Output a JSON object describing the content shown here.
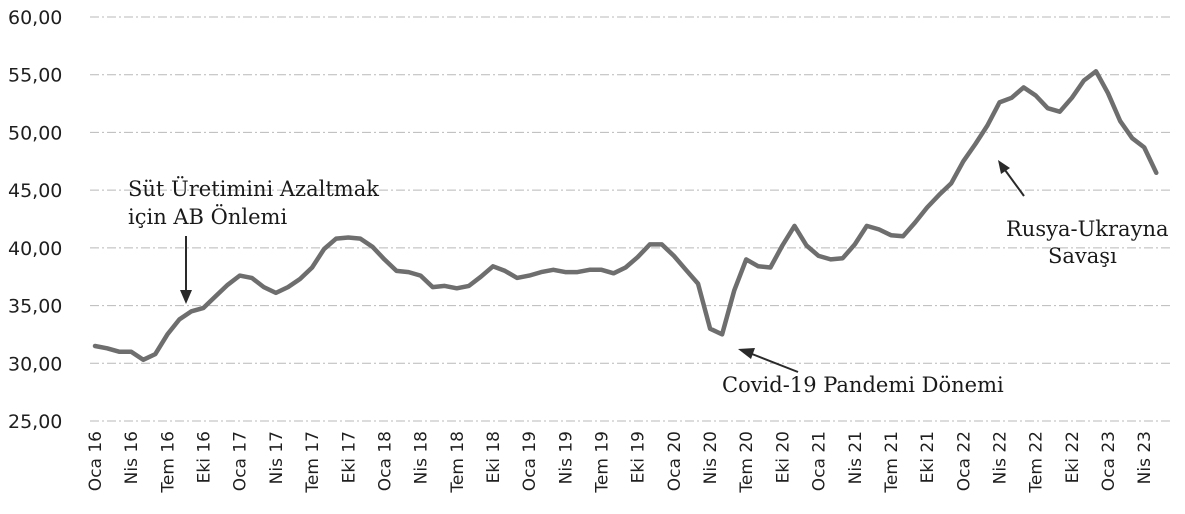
{
  "chart_data": {
    "type": "line",
    "ylim": [
      25,
      60
    ],
    "grid": true,
    "y_ticks": [
      "60,00",
      "55,00",
      "50,00",
      "45,00",
      "40,00",
      "35,00",
      "30,00",
      "25,00"
    ],
    "x_tick_labels": [
      "Oca 16",
      "Nis 16",
      "Tem 16",
      "Eki 16",
      "Oca 17",
      "Nis 17",
      "Tem 17",
      "Eki 17",
      "Oca 18",
      "Nis 18",
      "Tem 18",
      "Eki 18",
      "Oca 19",
      "Nis 19",
      "Tem 19",
      "Eki 19",
      "Oca 20",
      "Nis 20",
      "Tem 20",
      "Eki 20",
      "Oca 21",
      "Nis 21",
      "Tem 21",
      "Eki 21",
      "Oca 22",
      "Nis 22",
      "Tem 22",
      "Eki 22",
      "Oca 23",
      "Nis 23"
    ],
    "x": [
      "2016-01",
      "2016-02",
      "2016-03",
      "2016-04",
      "2016-05",
      "2016-06",
      "2016-07",
      "2016-08",
      "2016-09",
      "2016-10",
      "2016-11",
      "2016-12",
      "2017-01",
      "2017-02",
      "2017-03",
      "2017-04",
      "2017-05",
      "2017-06",
      "2017-07",
      "2017-08",
      "2017-09",
      "2017-10",
      "2017-11",
      "2017-12",
      "2018-01",
      "2018-02",
      "2018-03",
      "2018-04",
      "2018-05",
      "2018-06",
      "2018-07",
      "2018-08",
      "2018-09",
      "2018-10",
      "2018-11",
      "2018-12",
      "2019-01",
      "2019-02",
      "2019-03",
      "2019-04",
      "2019-05",
      "2019-06",
      "2019-07",
      "2019-08",
      "2019-09",
      "2019-10",
      "2019-11",
      "2019-12",
      "2020-01",
      "2020-02",
      "2020-03",
      "2020-04",
      "2020-05",
      "2020-06",
      "2020-07",
      "2020-08",
      "2020-09",
      "2020-10",
      "2020-11",
      "2020-12",
      "2021-01",
      "2021-02",
      "2021-03",
      "2021-04",
      "2021-05",
      "2021-06",
      "2021-07",
      "2021-08",
      "2021-09",
      "2021-10",
      "2021-11",
      "2021-12",
      "2022-01",
      "2022-02",
      "2022-03",
      "2022-04",
      "2022-05",
      "2022-06",
      "2022-07",
      "2022-08",
      "2022-09",
      "2022-10",
      "2022-11",
      "2022-12",
      "2023-01",
      "2023-02",
      "2023-03",
      "2023-04",
      "2023-05"
    ],
    "series": [
      {
        "values": [
          31.5,
          31.3,
          31.0,
          31.0,
          30.3,
          30.8,
          32.5,
          33.8,
          34.5,
          34.8,
          35.8,
          36.8,
          37.6,
          37.4,
          36.6,
          36.1,
          36.6,
          37.3,
          38.3,
          39.9,
          40.8,
          40.9,
          40.8,
          40.1,
          39.0,
          38.0,
          37.9,
          37.6,
          36.6,
          36.7,
          36.5,
          36.7,
          37.5,
          38.4,
          38.0,
          37.4,
          37.6,
          37.9,
          38.1,
          37.9,
          37.9,
          38.1,
          38.1,
          37.8,
          38.3,
          39.2,
          40.3,
          40.3,
          39.3,
          38.1,
          36.9,
          33.0,
          32.5,
          36.3,
          39.0,
          38.4,
          38.3,
          40.2,
          41.9,
          40.2,
          39.3,
          39.0,
          39.1,
          40.3,
          41.9,
          41.6,
          41.1,
          41.0,
          42.2,
          43.5,
          44.6,
          45.6,
          47.5,
          49.0,
          50.6,
          52.6,
          53.0,
          53.9,
          53.2,
          52.1,
          51.8,
          53.0,
          54.5,
          55.3,
          53.4,
          51.0,
          49.5,
          48.7,
          46.5
        ]
      }
    ],
    "annotations": [
      {
        "lines": [
          "Süt Üretimini Azaltmak",
          "için AB Önlemi"
        ]
      },
      {
        "lines": [
          "Covid-19 Pandemi Dönemi"
        ]
      },
      {
        "lines": [
          "Rusya-Ukrayna",
          "Savaşı"
        ]
      }
    ],
    "colors": {
      "line": "#6e6e6e",
      "grid": "#b9b9b9",
      "text": "#1f1f1f"
    }
  }
}
